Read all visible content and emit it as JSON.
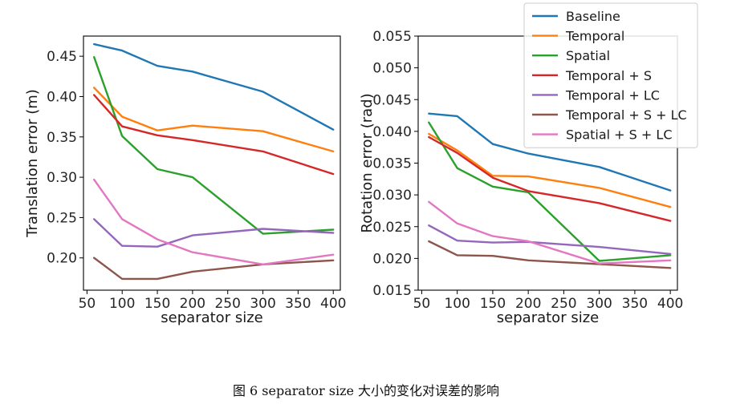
{
  "chart_data": [
    {
      "type": "line",
      "xlabel": "separator size",
      "ylabel": "Translation error (m)",
      "x": [
        60,
        100,
        150,
        200,
        300,
        400
      ],
      "xticks": [
        "50",
        "100",
        "150",
        "200",
        "250",
        "300",
        "350",
        "400"
      ],
      "xtick_values": [
        50,
        100,
        150,
        200,
        250,
        300,
        350,
        400
      ],
      "yticks": [
        "0.20",
        "0.25",
        "0.30",
        "0.35",
        "0.40",
        "0.45"
      ],
      "ytick_values": [
        0.2,
        0.25,
        0.3,
        0.35,
        0.4,
        0.45
      ],
      "xlim": [
        45,
        410
      ],
      "ylim": [
        0.16,
        0.475
      ],
      "grid": false,
      "series": [
        {
          "name": "Baseline",
          "color": "#1f77b4",
          "values": [
            0.465,
            0.457,
            0.438,
            0.431,
            0.406,
            0.359
          ]
        },
        {
          "name": "Temporal",
          "color": "#ff7f0e",
          "values": [
            0.411,
            0.375,
            0.358,
            0.364,
            0.357,
            0.332
          ]
        },
        {
          "name": "Spatial",
          "color": "#2ca02c",
          "values": [
            0.449,
            0.351,
            0.31,
            0.3,
            0.23,
            0.235
          ]
        },
        {
          "name": "Temporal + S",
          "color": "#d62728",
          "values": [
            0.402,
            0.363,
            0.352,
            0.346,
            0.332,
            0.304
          ]
        },
        {
          "name": "Temporal + LC",
          "color": "#9467bd",
          "values": [
            0.248,
            0.215,
            0.214,
            0.228,
            0.236,
            0.231
          ]
        },
        {
          "name": "Temporal + S + LC",
          "color": "#8c564b",
          "values": [
            0.2,
            0.174,
            0.174,
            0.183,
            0.192,
            0.197
          ]
        },
        {
          "name": "Spatial + S + LC",
          "color": "#e377c2",
          "values": [
            0.297,
            0.248,
            0.223,
            0.207,
            0.192,
            0.204
          ]
        }
      ]
    },
    {
      "type": "line",
      "xlabel": "separator size",
      "ylabel": "Rotation error (rad)",
      "x": [
        60,
        100,
        150,
        200,
        300,
        400
      ],
      "xticks": [
        "50",
        "100",
        "150",
        "200",
        "250",
        "300",
        "350",
        "400"
      ],
      "xtick_values": [
        50,
        100,
        150,
        200,
        250,
        300,
        350,
        400
      ],
      "yticks": [
        "0.015",
        "0.020",
        "0.025",
        "0.030",
        "0.035",
        "0.040",
        "0.045",
        "0.050",
        "0.055"
      ],
      "ytick_values": [
        0.015,
        0.02,
        0.025,
        0.03,
        0.035,
        0.04,
        0.045,
        0.05,
        0.055
      ],
      "xlim": [
        45,
        410
      ],
      "ylim": [
        0.015,
        0.055
      ],
      "grid": false,
      "series": [
        {
          "name": "Baseline",
          "color": "#1f77b4",
          "values": [
            0.0428,
            0.0424,
            0.038,
            0.0365,
            0.0344,
            0.0307
          ]
        },
        {
          "name": "Temporal",
          "color": "#ff7f0e",
          "values": [
            0.0396,
            0.037,
            0.033,
            0.0329,
            0.0311,
            0.0281
          ]
        },
        {
          "name": "Spatial",
          "color": "#2ca02c",
          "values": [
            0.0414,
            0.0342,
            0.0313,
            0.0304,
            0.0196,
            0.0205
          ]
        },
        {
          "name": "Temporal + S",
          "color": "#d62728",
          "values": [
            0.0391,
            0.0366,
            0.0327,
            0.0306,
            0.0287,
            0.0259
          ]
        },
        {
          "name": "Temporal + LC",
          "color": "#9467bd",
          "values": [
            0.0252,
            0.0228,
            0.0225,
            0.0226,
            0.0218,
            0.0207
          ]
        },
        {
          "name": "Temporal + S + LC",
          "color": "#8c564b",
          "values": [
            0.0227,
            0.0205,
            0.0204,
            0.0197,
            0.0191,
            0.0185
          ]
        },
        {
          "name": "Spatial + S + LC",
          "color": "#e377c2",
          "values": [
            0.0289,
            0.0255,
            0.0235,
            0.0227,
            0.0192,
            0.0197
          ]
        }
      ]
    }
  ],
  "legend": {
    "placement": "top-right",
    "entries": [
      {
        "name": "Baseline",
        "color": "#1f77b4"
      },
      {
        "name": "Temporal",
        "color": "#ff7f0e"
      },
      {
        "name": "Spatial",
        "color": "#2ca02c"
      },
      {
        "name": "Temporal + S",
        "color": "#d62728"
      },
      {
        "name": "Temporal + LC",
        "color": "#9467bd"
      },
      {
        "name": "Temporal + S + LC",
        "color": "#8c564b"
      },
      {
        "name": "Spatial + S + LC",
        "color": "#e377c2"
      }
    ]
  },
  "caption": "图  6 separator size 大小的变化对误差的影响"
}
